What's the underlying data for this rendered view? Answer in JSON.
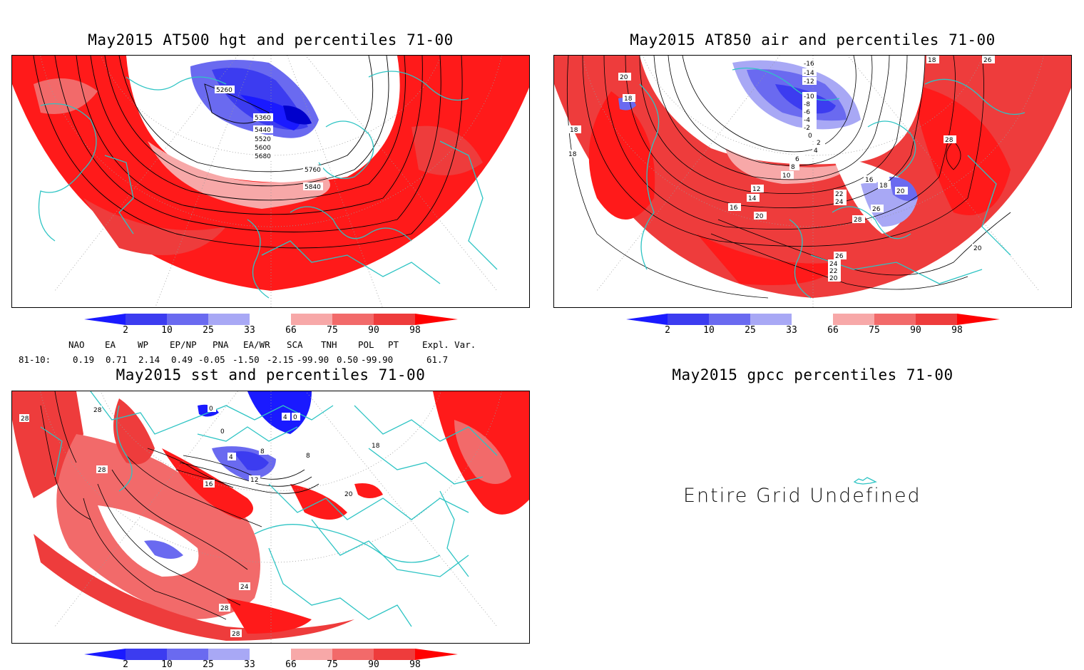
{
  "panels": {
    "hgt": {
      "title": "May2015 AT500 hgt and percentiles 71-00",
      "contours": [
        "5260",
        "5360",
        "5440",
        "5520",
        "5600",
        "5680",
        "5760",
        "5840"
      ]
    },
    "air": {
      "title": "May2015 AT850 air and percentiles 71-00",
      "contours": [
        "-16",
        "-14",
        "-12",
        "-10",
        "-8",
        "-6",
        "-4",
        "-2",
        "0",
        "2",
        "4",
        "6",
        "8",
        "10",
        "12",
        "14",
        "16",
        "18",
        "20",
        "22",
        "24",
        "26",
        "28"
      ]
    },
    "sst": {
      "title": "May2015 sst and percentiles 71-00",
      "contours": [
        "28",
        "28",
        "0",
        "0",
        "4",
        "8",
        "12",
        "16",
        "18",
        "20",
        "24",
        "28",
        "28"
      ]
    },
    "gpcc": {
      "title": "May2015 gpcc percentiles 71-00",
      "message": "Entire Grid Undefined"
    }
  },
  "colorbar": {
    "labels": [
      "2",
      "10",
      "25",
      "33",
      "66",
      "75",
      "90",
      "98"
    ],
    "colors": {
      "below_2": "#1a1aff",
      "b2_10": "#3c3cf0",
      "b10_25": "#6a6af0",
      "b25_33": "#a8a8f5",
      "b33_66": "#ffffff",
      "b66_75": "#f7a8a8",
      "b75_90": "#f26a6a",
      "b90_98": "#ee3c3c",
      "above_98": "#ff0000"
    }
  },
  "indices": {
    "headers": [
      "NAO",
      "EA",
      "WP",
      "EP/NP",
      "PNA",
      "EA/WR",
      "SCA",
      "TNH",
      "POL",
      "PT",
      "Expl. Var."
    ],
    "row_label": "81-10:",
    "values": [
      "0.19",
      "0.71",
      "2.14",
      "0.49",
      "-0.05",
      "-1.50",
      "-2.15",
      "-99.90",
      "0.50",
      "-99.90",
      "61.7"
    ]
  },
  "map_colors": {
    "coast": "#2ec4c4",
    "contour": "#000000",
    "grid": "#9a9a9a"
  }
}
